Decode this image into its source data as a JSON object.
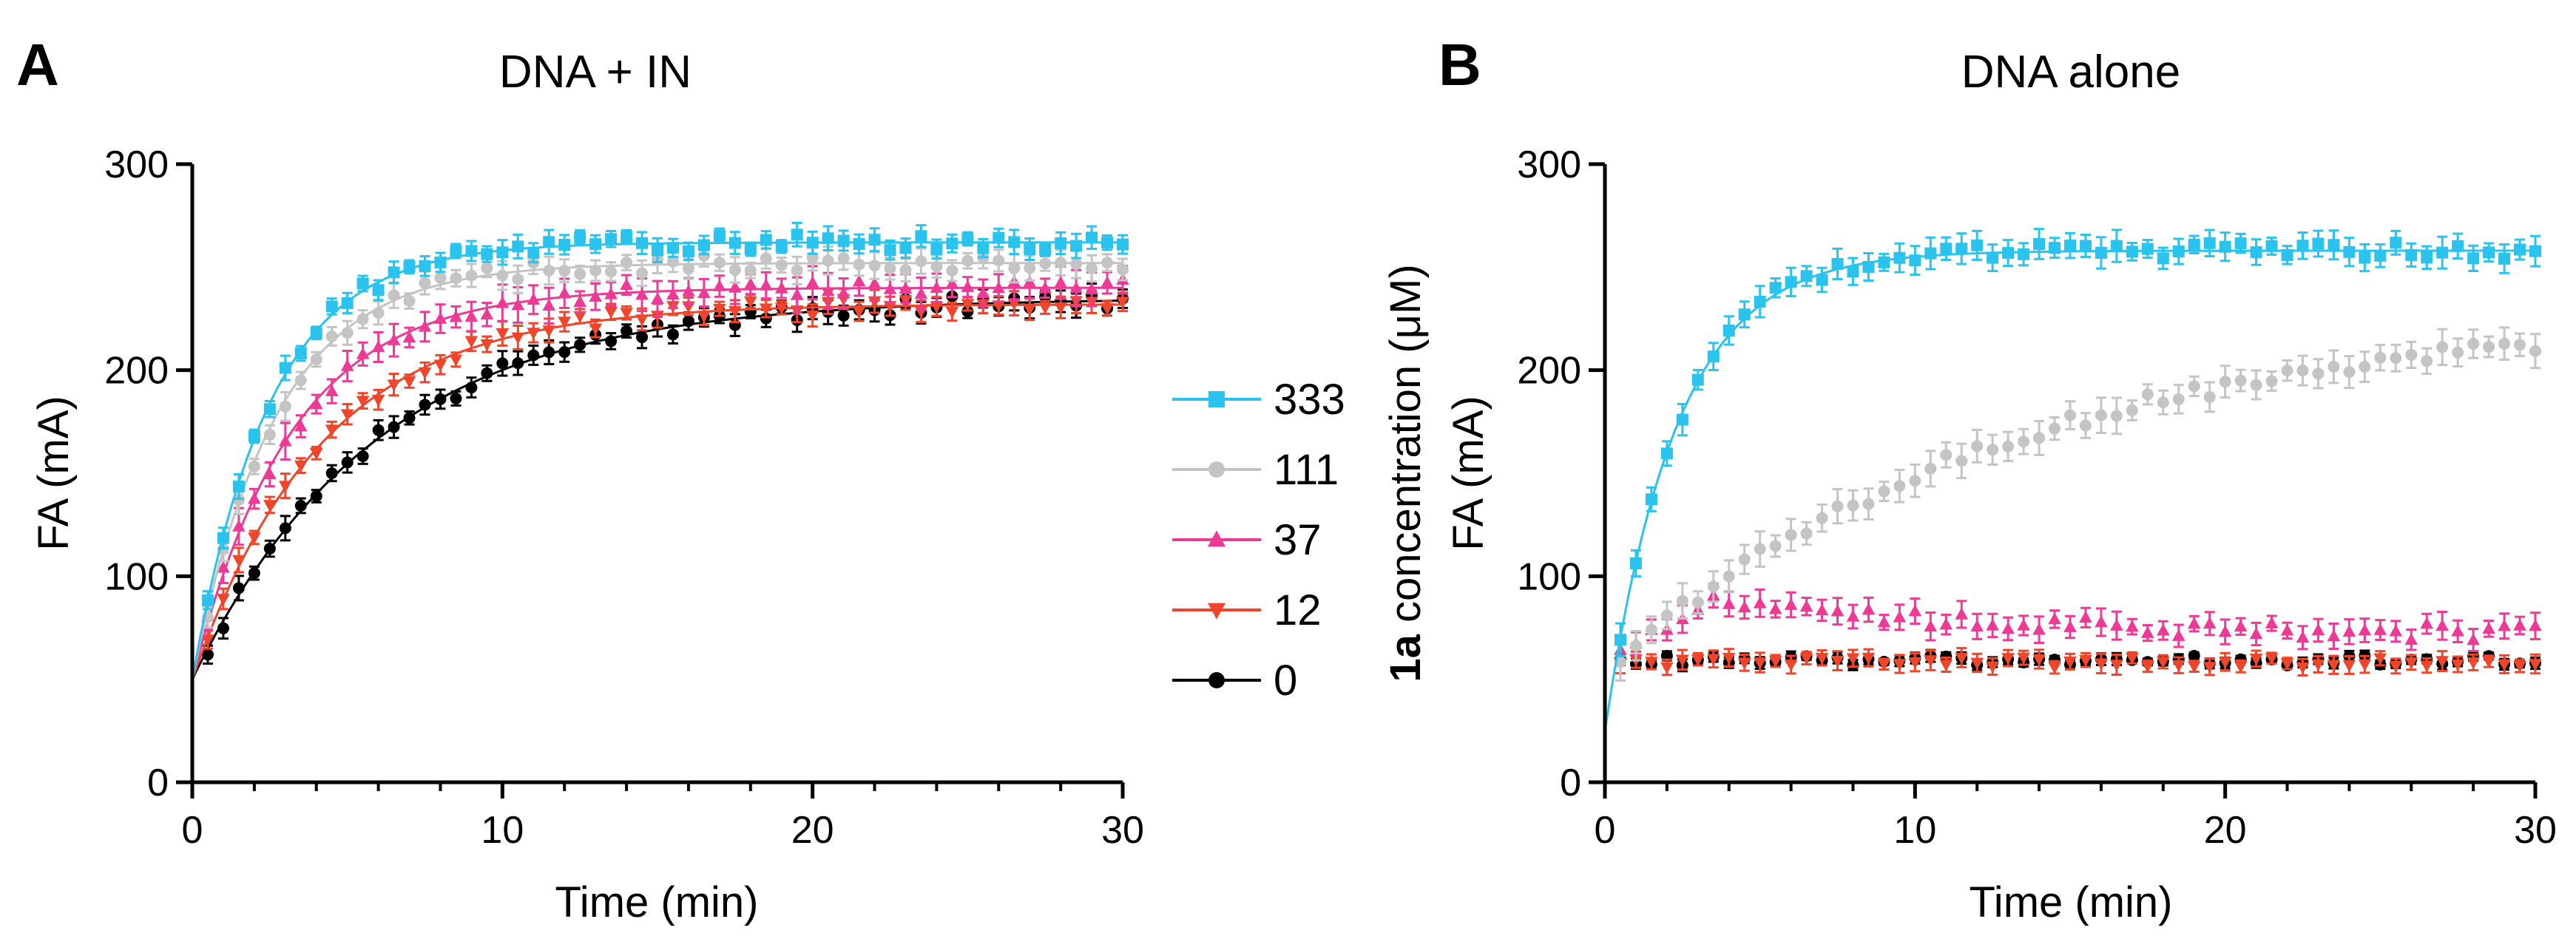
{
  "figure": {
    "legend": {
      "title_bold": "1a",
      "title_rest": " concentration (μM)",
      "entries": [
        {
          "label": "333",
          "series": "s333"
        },
        {
          "label": "111",
          "series": "s111"
        },
        {
          "label": "37",
          "series": "s37"
        },
        {
          "label": "12",
          "series": "s12"
        },
        {
          "label": "0",
          "series": "s0"
        }
      ]
    }
  },
  "chart_data": [
    {
      "type": "scatter",
      "panel": "A",
      "title": "DNA + IN",
      "xlabel": "Time (min)",
      "ylabel": "FA (mA)",
      "xlim": [
        0,
        30
      ],
      "ylim": [
        0,
        300
      ],
      "xticks": [
        0,
        10,
        20,
        30
      ],
      "yticks": [
        0,
        100,
        200,
        300
      ],
      "grid": false,
      "series": [
        {
          "id": "s333",
          "name": "333",
          "color": "#29c3ee",
          "marker": "square",
          "fit": {
            "y0": 50,
            "plateau": 262,
            "tau": 2.5
          },
          "err": 6
        },
        {
          "id": "s111",
          "name": "111",
          "color": "#c4c4c4",
          "marker": "circle",
          "fit": {
            "y0": 50,
            "plateau": 252,
            "tau": 2.7
          },
          "err": 7
        },
        {
          "id": "s37",
          "name": "37",
          "color": "#ee3a97",
          "marker": "triangle-up",
          "fit": {
            "y0": 50,
            "plateau": 240,
            "tau": 3.2
          },
          "err": 9
        },
        {
          "id": "s12",
          "name": "12",
          "color": "#f0452a",
          "marker": "triangle-down",
          "fit": {
            "y0": 50,
            "plateau": 232,
            "tau": 4.2
          },
          "err": 6
        },
        {
          "id": "s0",
          "name": "0",
          "color": "#000000",
          "marker": "circle",
          "fit": {
            "y0": 50,
            "plateau": 235,
            "tau": 6.0
          },
          "err": 6
        }
      ]
    },
    {
      "type": "scatter",
      "panel": "B",
      "title": "DNA alone",
      "xlabel": "Time (min)",
      "ylabel": "FA (mA)",
      "xlim": [
        0,
        30
      ],
      "ylim": [
        0,
        300
      ],
      "xticks": [
        0,
        10,
        20,
        30
      ],
      "yticks": [
        0,
        100,
        200,
        300
      ],
      "grid": false,
      "series": [
        {
          "id": "s333",
          "name": "333",
          "color": "#29c3ee",
          "marker": "square",
          "fit": {
            "y0": 25,
            "plateau": 258,
            "tau": 2.3
          },
          "err": 8
        },
        {
          "id": "s111",
          "name": "111",
          "color": "#c4c4c4",
          "marker": "circle",
          "trend": {
            "y0": 55,
            "plateau": 230,
            "tau": 13.0
          },
          "err": 9
        },
        {
          "id": "s37",
          "name": "37",
          "color": "#ee3a97",
          "marker": "triangle-up",
          "hump": {
            "start": 62,
            "peak": 90,
            "peak_t": 3.5,
            "end": 72
          },
          "err": 7
        },
        {
          "id": "s12",
          "name": "12",
          "color": "#f0452a",
          "marker": "triangle-down",
          "flat": 58,
          "err": 5
        },
        {
          "id": "s0",
          "name": "0",
          "color": "#000000",
          "marker": "circle",
          "flat": 59,
          "err": 3
        }
      ]
    }
  ]
}
